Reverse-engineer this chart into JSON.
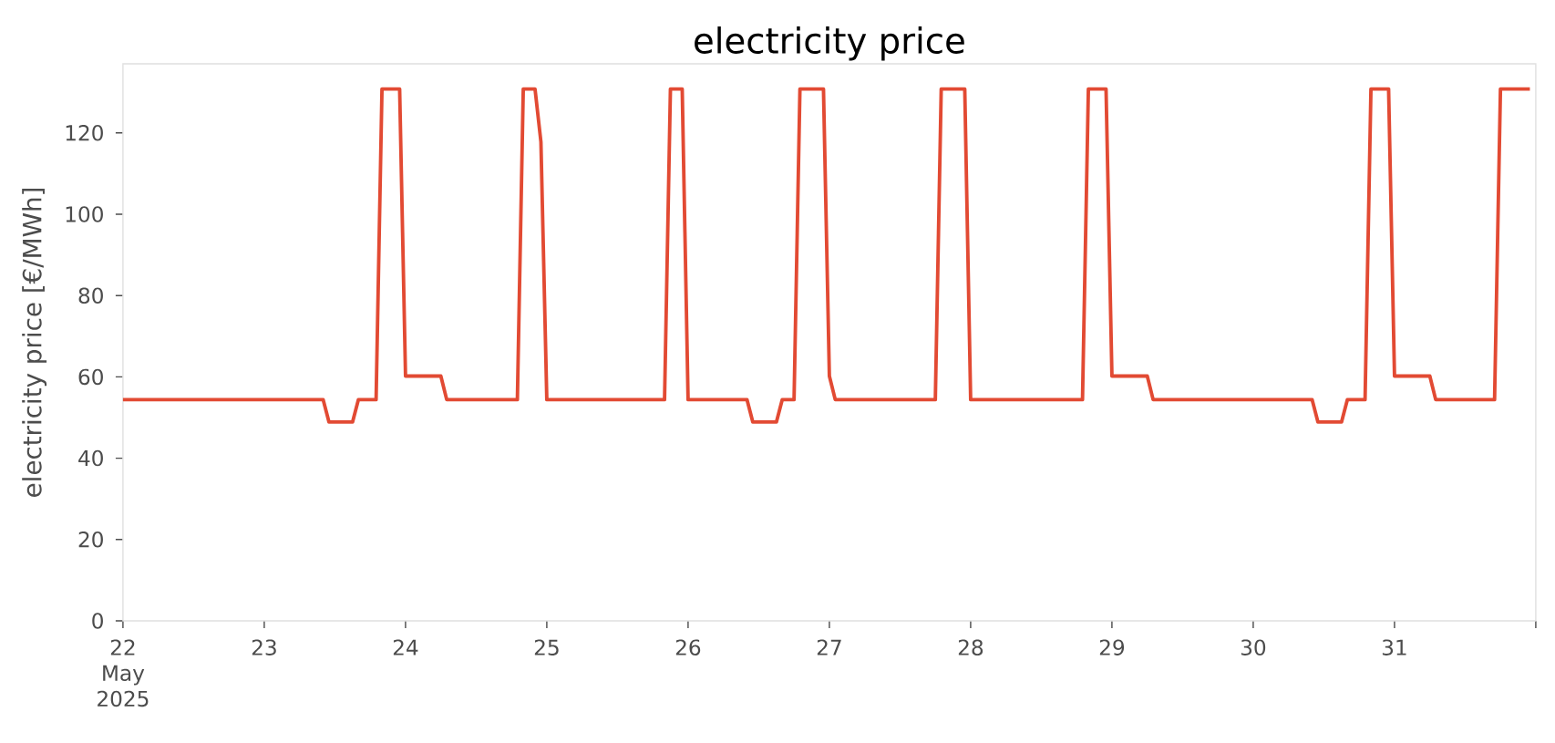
{
  "chart_data": {
    "type": "line",
    "title": "electricity price",
    "ylabel": "electricity price [€/MWh]",
    "x": [
      "2025-05-22T00:00",
      "2025-05-23T10:00",
      "2025-05-23T11:00",
      "2025-05-23T15:00",
      "2025-05-23T16:00",
      "2025-05-23T19:00",
      "2025-05-23T20:00",
      "2025-05-23T23:00",
      "2025-05-24T00:00",
      "2025-05-24T06:00",
      "2025-05-24T07:00",
      "2025-05-24T19:00",
      "2025-05-24T20:00",
      "2025-05-24T22:00",
      "2025-05-24T23:00",
      "2025-05-25T00:00",
      "2025-05-25T20:00",
      "2025-05-25T21:00",
      "2025-05-25T23:00",
      "2025-05-26T00:00",
      "2025-05-26T10:00",
      "2025-05-26T11:00",
      "2025-05-26T15:00",
      "2025-05-26T16:00",
      "2025-05-26T18:00",
      "2025-05-26T19:00",
      "2025-05-26T23:00",
      "2025-05-27T00:00",
      "2025-05-27T01:00",
      "2025-05-27T18:00",
      "2025-05-27T19:00",
      "2025-05-27T23:00",
      "2025-05-28T00:00",
      "2025-05-28T19:00",
      "2025-05-28T20:00",
      "2025-05-28T23:00",
      "2025-05-29T00:00",
      "2025-05-29T06:00",
      "2025-05-29T07:00",
      "2025-05-30T10:00",
      "2025-05-30T11:00",
      "2025-05-30T15:00",
      "2025-05-30T16:00",
      "2025-05-30T19:00",
      "2025-05-30T20:00",
      "2025-05-30T23:00",
      "2025-05-31T00:00",
      "2025-05-31T06:00",
      "2025-05-31T07:00",
      "2025-05-31T17:00",
      "2025-05-31T18:00",
      "2025-05-31T23:00"
    ],
    "series": [
      {
        "color": "#e24a33",
        "values": [
          54.4,
          54.4,
          48.9,
          48.9,
          54.4,
          54.4,
          130.8,
          130.8,
          60.2,
          60.2,
          54.4,
          54.4,
          130.8,
          130.8,
          117.8,
          54.4,
          54.4,
          130.8,
          130.8,
          54.4,
          54.4,
          48.9,
          48.9,
          54.4,
          54.4,
          130.8,
          130.8,
          60.2,
          54.4,
          54.4,
          130.8,
          130.8,
          54.4,
          54.4,
          130.8,
          130.8,
          60.2,
          60.2,
          54.4,
          54.4,
          48.9,
          48.9,
          54.4,
          54.4,
          130.8,
          130.8,
          60.2,
          60.2,
          54.4,
          54.4,
          130.8,
          130.8
        ]
      }
    ],
    "xlim": [
      "2025-05-22",
      "2025-06-01"
    ],
    "xticks": [
      {
        "value": "2025-05-22",
        "label": "22 May 2025"
      },
      {
        "value": "2025-05-23",
        "label": "23"
      },
      {
        "value": "2025-05-24",
        "label": "24"
      },
      {
        "value": "2025-05-25",
        "label": "25"
      },
      {
        "value": "2025-05-26",
        "label": "26"
      },
      {
        "value": "2025-05-27",
        "label": "27"
      },
      {
        "value": "2025-05-28",
        "label": "28"
      },
      {
        "value": "2025-05-29",
        "label": "29"
      },
      {
        "value": "2025-05-30",
        "label": "30"
      },
      {
        "value": "2025-05-31",
        "label": "31"
      },
      {
        "value": "2025-06-01",
        "label": null
      }
    ],
    "ylim": [
      0,
      137
    ],
    "yticks": [
      0,
      20,
      40,
      60,
      80,
      100,
      120
    ],
    "line_style": "solid",
    "marker": "none"
  }
}
